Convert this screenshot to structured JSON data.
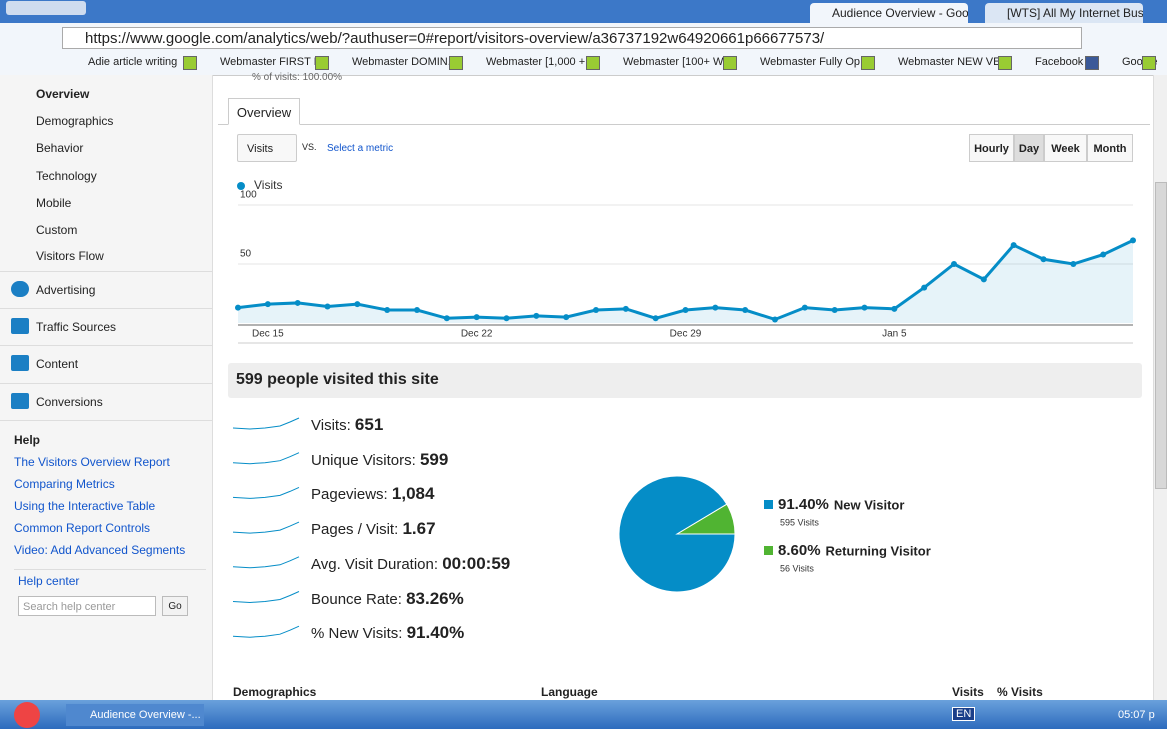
{
  "browser": {
    "tabs": [
      "Audience Overview - Goo",
      "[WTS] All My Internet Bus"
    ],
    "url": "https://www.google.com/analytics/web/?authuser=0#report/visitors-overview/a36737192w64920661p66677573/",
    "bookmarks": [
      "Adie article writing",
      "Webmaster FIRST P...",
      "Webmaster DOMIN...",
      "Webmaster [1,000 + ...",
      "Webmaster [100+ W...",
      "Webmaster Fully Op...",
      "Webmaster NEW VE...",
      "Facebook",
      "Google"
    ]
  },
  "sidebar": {
    "report_items": [
      "Overview",
      "Demographics",
      "Behavior",
      "Technology",
      "Mobile",
      "Custom",
      "Visitors Flow"
    ],
    "sections": [
      "Advertising",
      "Traffic Sources",
      "Content",
      "Conversions"
    ],
    "help": {
      "title": "Help",
      "links": [
        "The Visitors Overview Report",
        "Comparing Metrics",
        "Using the Interactive Table",
        "Common Report Controls",
        "Video: Add Advanced Segments"
      ],
      "help_center": "Help center",
      "search_placeholder": "Search help center",
      "search_button": "Go"
    }
  },
  "header_partial": "% of visits: 100.00%",
  "report_tab": "Overview",
  "controls": {
    "metric": "Visits",
    "vs": "VS.",
    "select_metric": "Select a metric",
    "granularity": [
      "Hourly",
      "Day",
      "Week",
      "Month"
    ]
  },
  "chart_data": [
    {
      "type": "line",
      "categories": [
        null,
        "Dec 15",
        null,
        null,
        null,
        null,
        null,
        null,
        "Dec 22",
        null,
        null,
        null,
        null,
        null,
        null,
        "Dec 29",
        null,
        null,
        null,
        null,
        null,
        null,
        "Jan 5",
        null,
        null,
        null,
        null,
        null,
        null,
        null,
        null
      ],
      "series": [
        {
          "name": "Visits",
          "color": "#058dc7",
          "values": [
            13,
            16,
            17,
            14,
            16,
            11,
            11,
            4,
            5,
            4,
            6,
            5,
            11,
            12,
            4,
            11,
            13,
            11,
            3,
            13,
            11,
            13,
            12,
            30,
            50,
            37,
            66,
            54,
            50,
            58,
            70
          ]
        }
      ],
      "ylim": [
        0,
        100
      ],
      "yticks": [
        50,
        100
      ],
      "grid": true
    },
    {
      "type": "pie",
      "categories": [
        "New Visitor",
        "Returning Visitor"
      ],
      "values": [
        91.4,
        8.6
      ],
      "value_labels": [
        "91.40%",
        "8.60%"
      ],
      "details": [
        "595 Visits",
        "56 Visits"
      ],
      "colors": [
        "#058dc7",
        "#50b432"
      ]
    }
  ],
  "summary": {
    "title": "599 people visited this site",
    "metrics": [
      {
        "label": "Visits:",
        "value": "651"
      },
      {
        "label": "Unique Visitors:",
        "value": "599"
      },
      {
        "label": "Pageviews:",
        "value": "1,084"
      },
      {
        "label": "Pages / Visit:",
        "value": "1.67"
      },
      {
        "label": "Avg. Visit Duration:",
        "value": "00:00:59"
      },
      {
        "label": "Bounce Rate:",
        "value": "83.26%"
      },
      {
        "label": "% New Visits:",
        "value": "91.40%"
      }
    ]
  },
  "table_headers": [
    "Demographics",
    "Language",
    "Visits",
    "% Visits"
  ],
  "taskbar": {
    "window": "Audience Overview -...",
    "lang": "EN",
    "clock": "05:07 p"
  }
}
